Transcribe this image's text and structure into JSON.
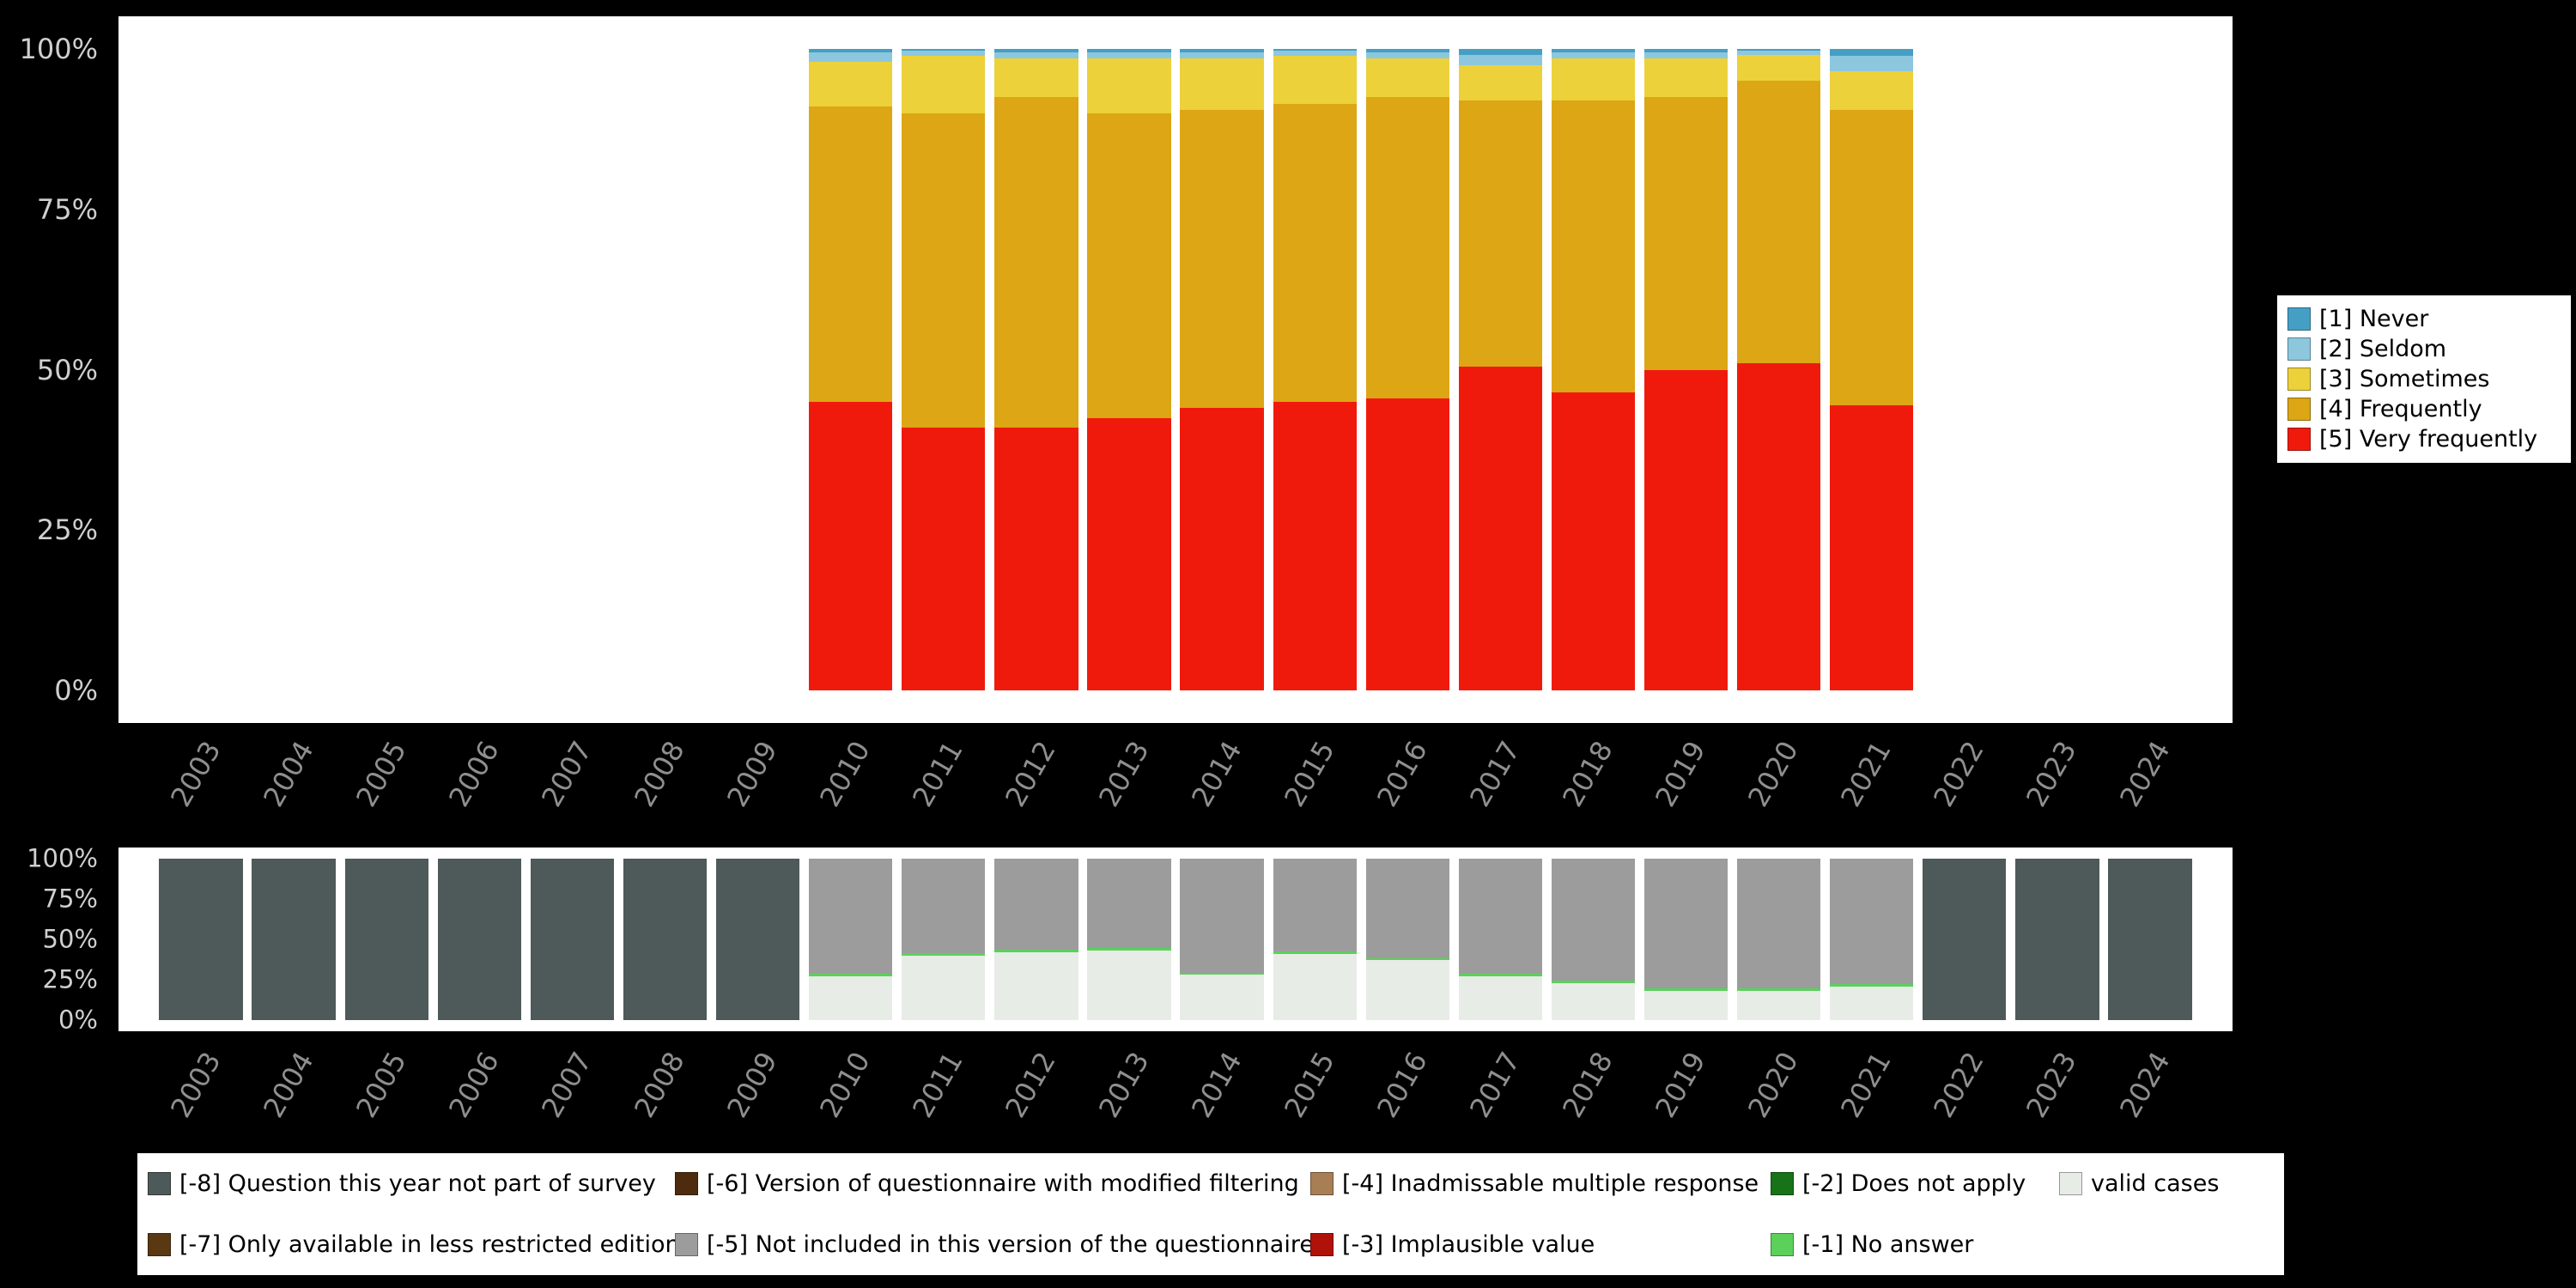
{
  "background": "#000000",
  "chart_data": [
    {
      "type": "bar",
      "stacked": true,
      "percent": true,
      "title": "",
      "xlabel": "",
      "ylabel": "",
      "ylim": [
        0,
        100
      ],
      "legend_position": "right",
      "grid": false,
      "categories": [
        "2003",
        "2004",
        "2005",
        "2006",
        "2007",
        "2008",
        "2009",
        "2010",
        "2011",
        "2012",
        "2013",
        "2014",
        "2015",
        "2016",
        "2017",
        "2018",
        "2019",
        "2020",
        "2021",
        "2022",
        "2023",
        "2024"
      ],
      "yticks": [
        "0%",
        "25%",
        "50%",
        "75%",
        "100%"
      ],
      "series": [
        {
          "name": "[1] Never",
          "color": "#459fc4",
          "values": [
            0,
            0,
            0,
            0,
            0,
            0,
            0,
            0.5,
            0.3,
            0.5,
            0.5,
            0.5,
            0.3,
            0.5,
            1.0,
            0.5,
            0.5,
            0.3,
            1.0,
            0,
            0,
            0
          ]
        },
        {
          "name": "[2] Seldom",
          "color": "#8cc7de",
          "values": [
            0,
            0,
            0,
            0,
            0,
            0,
            0,
            1.5,
            0.7,
            1.0,
            1.0,
            1.0,
            0.7,
            1.0,
            1.5,
            1.0,
            1.0,
            0.7,
            2.5,
            0,
            0,
            0
          ]
        },
        {
          "name": "[3] Sometimes",
          "color": "#ecd13b",
          "values": [
            0,
            0,
            0,
            0,
            0,
            0,
            0,
            7.0,
            9.0,
            6.0,
            8.5,
            8.0,
            7.5,
            6.0,
            5.5,
            6.5,
            6.0,
            4.0,
            6.0,
            0,
            0,
            0
          ]
        },
        {
          "name": "[4] Frequently",
          "color": "#dca614",
          "values": [
            0,
            0,
            0,
            0,
            0,
            0,
            0,
            46.0,
            49.0,
            51.5,
            47.5,
            46.5,
            46.5,
            47.0,
            41.5,
            45.5,
            42.5,
            44.0,
            46.0,
            0,
            0,
            0
          ]
        },
        {
          "name": "[5] Very frequently",
          "color": "#f01a0c",
          "values": [
            0,
            0,
            0,
            0,
            0,
            0,
            0,
            45.0,
            41.0,
            41.0,
            42.5,
            44.0,
            45.0,
            45.5,
            50.5,
            46.5,
            50.0,
            51.0,
            44.5,
            0,
            0,
            0
          ]
        }
      ]
    },
    {
      "type": "bar",
      "stacked": true,
      "percent": true,
      "title": "",
      "xlabel": "",
      "ylabel": "",
      "ylim": [
        0,
        100
      ],
      "legend_position": "bottom",
      "grid": false,
      "categories": [
        "2003",
        "2004",
        "2005",
        "2006",
        "2007",
        "2008",
        "2009",
        "2010",
        "2011",
        "2012",
        "2013",
        "2014",
        "2015",
        "2016",
        "2017",
        "2018",
        "2019",
        "2020",
        "2021",
        "2022",
        "2023",
        "2024"
      ],
      "yticks": [
        "0%",
        "25%",
        "50%",
        "75%",
        "100%"
      ],
      "series": [
        {
          "name": "[-8] Question this year not part of survey",
          "color": "#4d5a59",
          "values": [
            100,
            100,
            100,
            100,
            100,
            100,
            100,
            0,
            0,
            0,
            0,
            0,
            0,
            0,
            0,
            0,
            0,
            0,
            0,
            100,
            100,
            100
          ]
        },
        {
          "name": "[-5] Not included in this version of the questionnaire",
          "color": "#9c9c9c",
          "values": [
            0,
            0,
            0,
            0,
            0,
            0,
            0,
            71.5,
            58.5,
            56.5,
            55.5,
            70.5,
            57.5,
            61.5,
            71.5,
            75.5,
            80.5,
            80.5,
            77.5,
            0,
            0,
            0
          ]
        },
        {
          "name": "[-1] No answer",
          "color": "#5bd05b",
          "values": [
            0,
            0,
            0,
            0,
            0,
            0,
            0,
            1.5,
            1.5,
            1.5,
            1.5,
            1.5,
            1.5,
            1.5,
            1.5,
            1.5,
            1.5,
            1.5,
            1.5,
            0,
            0,
            0
          ]
        },
        {
          "name": "valid cases",
          "color": "#e7ece7",
          "values": [
            0,
            0,
            0,
            0,
            0,
            0,
            0,
            27,
            40,
            42,
            43,
            28,
            41,
            37,
            27,
            23,
            18,
            18,
            21,
            0,
            0,
            0
          ]
        }
      ]
    }
  ],
  "missing_legend": {
    "rows": [
      [
        {
          "label": "[-8] Question this year not part of survey",
          "color": "#4d5a59"
        },
        {
          "label": "[-6] Version of questionnaire with modified filtering",
          "color": "#4e2b0c"
        },
        {
          "label": "[-4] Inadmissable multiple response",
          "color": "#a87f55"
        },
        {
          "label": "[-2] Does not apply",
          "color": "#187218"
        },
        {
          "label": "valid cases",
          "color": "#e7ece7"
        }
      ],
      [
        {
          "label": "[-7] Only available in less restricted edition",
          "color": "#5a3811"
        },
        {
          "label": "[-5] Not included in this version of the questionnaire",
          "color": "#9c9c9c"
        },
        {
          "label": "[-3] Implausible value",
          "color": "#b01209"
        },
        {
          "label": "[-1] No answer",
          "color": "#5bd05b"
        }
      ]
    ]
  }
}
